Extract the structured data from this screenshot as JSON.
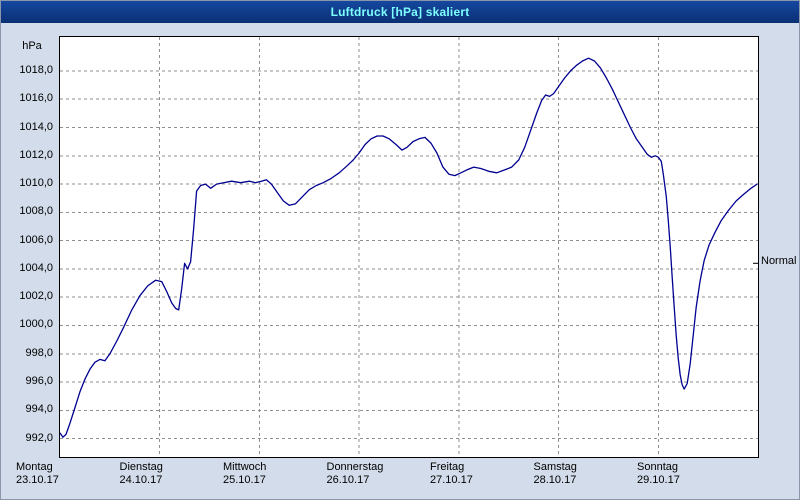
{
  "window": {
    "title": "Luftdruck [hPa] skaliert"
  },
  "colors": {
    "titlebar_bg": "#0e3a8c",
    "titlebar_text": "#7dffff",
    "window_bg": "#d3dcea",
    "plot_bg": "#ffffff",
    "line": "#000090",
    "grid": "#8f8f8f",
    "frame": "#000000"
  },
  "chart_data": {
    "type": "line",
    "title": "Luftdruck [hPa] skaliert",
    "xlabel": "",
    "ylabel": "hPa",
    "ylim": [
      990.7,
      1020.4
    ],
    "xlim_days": [
      0,
      7
    ],
    "grid": "dashed",
    "legend_position": "none",
    "yticks": [
      992,
      994,
      996,
      998,
      1000,
      1002,
      1004,
      1006,
      1008,
      1010,
      1012,
      1014,
      1016,
      1018
    ],
    "ytick_labels": [
      "992,0",
      "994,0",
      "996,0",
      "998,0",
      "1000,0",
      "1002,0",
      "1004,0",
      "1006,0",
      "1008,0",
      "1010,0",
      "1012,0",
      "1014,0",
      "1016,0",
      "1018,0"
    ],
    "x_days": [
      {
        "day": "Montag",
        "date": "23.10.17"
      },
      {
        "day": "Dienstag",
        "date": "24.10.17"
      },
      {
        "day": "Mittwoch",
        "date": "25.10.17"
      },
      {
        "day": "Donnerstag",
        "date": "26.10.17"
      },
      {
        "day": "Freitag",
        "date": "27.10.17"
      },
      {
        "day": "Samstag",
        "date": "28.10.17"
      },
      {
        "day": "Sonntag",
        "date": "29.10.17"
      }
    ],
    "annotations": [
      {
        "label": "Normal",
        "value": 1004.4,
        "position": "right"
      }
    ],
    "series": [
      {
        "name": "Luftdruck",
        "color": "#000090",
        "points": [
          [
            0.0,
            992.4
          ],
          [
            0.03,
            992.1
          ],
          [
            0.06,
            992.3
          ],
          [
            0.1,
            993.1
          ],
          [
            0.15,
            994.2
          ],
          [
            0.2,
            995.3
          ],
          [
            0.25,
            996.2
          ],
          [
            0.3,
            996.9
          ],
          [
            0.35,
            997.4
          ],
          [
            0.4,
            997.6
          ],
          [
            0.45,
            997.5
          ],
          [
            0.5,
            998.0
          ],
          [
            0.57,
            998.9
          ],
          [
            0.64,
            999.9
          ],
          [
            0.72,
            1001.1
          ],
          [
            0.8,
            1002.1
          ],
          [
            0.88,
            1002.8
          ],
          [
            0.96,
            1003.2
          ],
          [
            1.02,
            1003.1
          ],
          [
            1.07,
            1002.4
          ],
          [
            1.12,
            1001.6
          ],
          [
            1.16,
            1001.2
          ],
          [
            1.19,
            1001.1
          ],
          [
            1.22,
            1002.6
          ],
          [
            1.25,
            1004.4
          ],
          [
            1.28,
            1004.0
          ],
          [
            1.31,
            1004.5
          ],
          [
            1.34,
            1006.8
          ],
          [
            1.37,
            1009.5
          ],
          [
            1.41,
            1009.9
          ],
          [
            1.46,
            1010.0
          ],
          [
            1.51,
            1009.7
          ],
          [
            1.57,
            1010.0
          ],
          [
            1.64,
            1010.1
          ],
          [
            1.72,
            1010.2
          ],
          [
            1.81,
            1010.1
          ],
          [
            1.9,
            1010.2
          ],
          [
            1.96,
            1010.1
          ],
          [
            2.02,
            1010.2
          ],
          [
            2.07,
            1010.3
          ],
          [
            2.12,
            1010.0
          ],
          [
            2.18,
            1009.4
          ],
          [
            2.24,
            1008.8
          ],
          [
            2.3,
            1008.5
          ],
          [
            2.36,
            1008.6
          ],
          [
            2.43,
            1009.1
          ],
          [
            2.5,
            1009.6
          ],
          [
            2.57,
            1009.9
          ],
          [
            2.64,
            1010.1
          ],
          [
            2.72,
            1010.4
          ],
          [
            2.8,
            1010.8
          ],
          [
            2.88,
            1011.3
          ],
          [
            2.94,
            1011.7
          ],
          [
            3.0,
            1012.2
          ],
          [
            3.06,
            1012.8
          ],
          [
            3.12,
            1013.2
          ],
          [
            3.18,
            1013.4
          ],
          [
            3.24,
            1013.4
          ],
          [
            3.3,
            1013.2
          ],
          [
            3.37,
            1012.8
          ],
          [
            3.43,
            1012.4
          ],
          [
            3.48,
            1012.6
          ],
          [
            3.54,
            1013.0
          ],
          [
            3.6,
            1013.2
          ],
          [
            3.66,
            1013.3
          ],
          [
            3.72,
            1012.9
          ],
          [
            3.78,
            1012.2
          ],
          [
            3.84,
            1011.2
          ],
          [
            3.9,
            1010.7
          ],
          [
            3.96,
            1010.6
          ],
          [
            4.02,
            1010.8
          ],
          [
            4.08,
            1011.0
          ],
          [
            4.15,
            1011.2
          ],
          [
            4.22,
            1011.1
          ],
          [
            4.3,
            1010.9
          ],
          [
            4.38,
            1010.8
          ],
          [
            4.46,
            1011.0
          ],
          [
            4.53,
            1011.2
          ],
          [
            4.6,
            1011.7
          ],
          [
            4.66,
            1012.6
          ],
          [
            4.72,
            1013.8
          ],
          [
            4.78,
            1015.0
          ],
          [
            4.83,
            1015.9
          ],
          [
            4.87,
            1016.3
          ],
          [
            4.91,
            1016.2
          ],
          [
            4.95,
            1016.4
          ],
          [
            5.0,
            1016.9
          ],
          [
            5.06,
            1017.5
          ],
          [
            5.12,
            1018.0
          ],
          [
            5.18,
            1018.4
          ],
          [
            5.24,
            1018.7
          ],
          [
            5.3,
            1018.9
          ],
          [
            5.36,
            1018.7
          ],
          [
            5.42,
            1018.2
          ],
          [
            5.48,
            1017.5
          ],
          [
            5.54,
            1016.7
          ],
          [
            5.6,
            1015.8
          ],
          [
            5.66,
            1014.9
          ],
          [
            5.72,
            1014.0
          ],
          [
            5.78,
            1013.2
          ],
          [
            5.84,
            1012.6
          ],
          [
            5.89,
            1012.1
          ],
          [
            5.93,
            1011.9
          ],
          [
            5.97,
            1012.0
          ],
          [
            6.0,
            1011.9
          ],
          [
            6.03,
            1011.6
          ],
          [
            6.05,
            1010.7
          ],
          [
            6.08,
            1009.1
          ],
          [
            6.1,
            1007.4
          ],
          [
            6.12,
            1005.5
          ],
          [
            6.14,
            1003.4
          ],
          [
            6.16,
            1001.3
          ],
          [
            6.18,
            999.3
          ],
          [
            6.2,
            997.7
          ],
          [
            6.22,
            996.5
          ],
          [
            6.24,
            995.8
          ],
          [
            6.26,
            995.5
          ],
          [
            6.29,
            995.9
          ],
          [
            6.32,
            997.3
          ],
          [
            6.35,
            999.3
          ],
          [
            6.38,
            1001.3
          ],
          [
            6.42,
            1003.2
          ],
          [
            6.46,
            1004.6
          ],
          [
            6.51,
            1005.7
          ],
          [
            6.57,
            1006.6
          ],
          [
            6.63,
            1007.4
          ],
          [
            6.7,
            1008.1
          ],
          [
            6.78,
            1008.8
          ],
          [
            6.86,
            1009.3
          ],
          [
            6.93,
            1009.7
          ],
          [
            6.99,
            1010.0
          ]
        ]
      }
    ]
  }
}
